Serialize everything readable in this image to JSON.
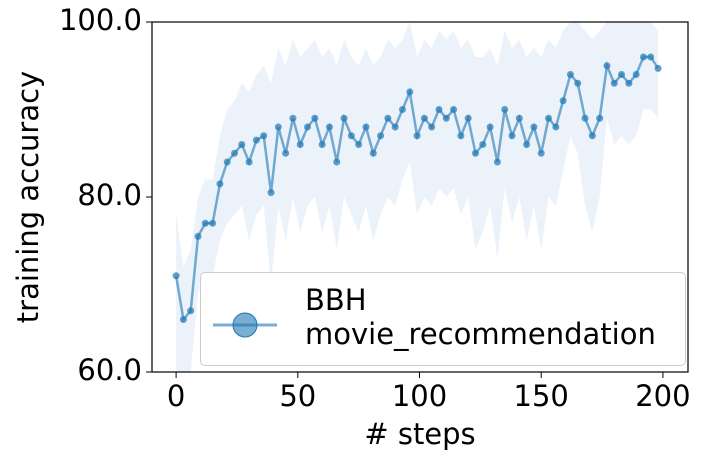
{
  "chart_data": {
    "type": "line",
    "xlabel": "# steps",
    "ylabel": "training accuracy",
    "xlim": [
      -9.9,
      210.3
    ],
    "ylim": [
      60,
      100
    ],
    "xticks": [
      0,
      50,
      100,
      150,
      200
    ],
    "yticks": [
      {
        "value": 60,
        "label": "60.0"
      },
      {
        "value": 80,
        "label": "80.0"
      },
      {
        "value": 100,
        "label": "100.0"
      }
    ],
    "legend": "lower right",
    "series": [
      {
        "name": "BBH\nmovie_recommendation",
        "color": "#1f77b4",
        "band_color": "#c6d9f0",
        "x": [
          0,
          3,
          6,
          9,
          12,
          15,
          18,
          21,
          24,
          27,
          30,
          33,
          36,
          39,
          42,
          45,
          48,
          51,
          54,
          57,
          60,
          63,
          66,
          69,
          72,
          75,
          78,
          81,
          84,
          87,
          90,
          93,
          96,
          99,
          102,
          105,
          108,
          111,
          114,
          117,
          120,
          123,
          126,
          129,
          132,
          135,
          138,
          141,
          144,
          147,
          150,
          153,
          156,
          159,
          162,
          165,
          168,
          171,
          174,
          177,
          180,
          183,
          186,
          189,
          192,
          195,
          198
        ],
        "values": [
          71,
          66,
          67,
          75.5,
          77,
          77,
          81.5,
          84,
          85,
          86,
          84,
          86.5,
          87,
          80.5,
          88,
          85,
          89,
          86,
          88,
          89,
          86,
          88,
          84,
          89,
          87,
          86,
          88,
          85,
          87,
          89,
          88,
          90,
          92,
          87,
          89,
          88,
          90,
          89,
          90,
          87,
          89,
          85,
          86,
          88,
          84,
          90,
          87,
          89,
          86,
          88,
          85,
          89,
          88,
          91,
          94,
          93,
          89,
          87,
          89,
          95,
          93,
          94,
          93,
          94,
          96,
          96,
          94.7
        ],
        "upper": [
          78,
          72,
          74,
          80,
          82,
          82,
          87,
          90,
          91,
          93,
          92,
          94,
          95,
          93,
          97,
          95,
          98,
          96,
          97,
          98,
          96,
          97,
          95,
          98,
          96,
          95,
          97,
          95,
          96,
          98,
          97,
          98,
          100,
          96,
          98,
          97,
          99,
          98,
          99,
          97,
          98,
          96,
          96,
          97,
          95,
          99,
          97,
          98,
          96,
          97,
          96,
          98,
          97,
          99,
          100,
          100,
          99,
          98,
          99,
          100,
          100,
          100,
          100,
          100,
          100,
          100,
          99
        ],
        "lower": [
          60,
          60,
          60,
          69,
          71,
          71,
          75,
          77,
          78,
          79,
          75,
          78,
          79,
          70,
          79,
          75,
          80,
          76,
          79,
          80,
          76,
          79,
          74,
          80,
          78,
          76,
          79,
          75,
          78,
          80,
          79,
          82,
          84,
          78,
          80,
          79,
          81,
          80,
          81,
          78,
          80,
          74,
          76,
          79,
          73,
          81,
          77,
          80,
          75,
          79,
          74,
          80,
          79,
          83,
          87,
          85,
          79,
          76,
          80,
          89,
          86,
          87,
          86,
          87,
          90,
          90,
          89
        ]
      }
    ]
  }
}
